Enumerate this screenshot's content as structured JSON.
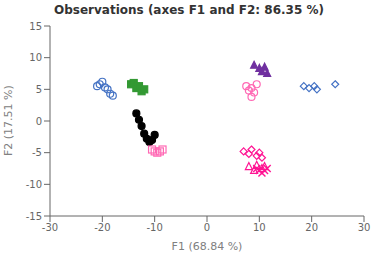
{
  "chart_data": {
    "type": "scatter",
    "title": "Observations (axes F1 and F2: 86.35 %)",
    "xlabel": "F1 (68.84 %)",
    "ylabel": "F2 (17.51 %)",
    "xlim": [
      -30,
      30
    ],
    "ylim": [
      -15,
      15
    ],
    "xticks": [
      -30,
      -20,
      -10,
      0,
      10,
      20,
      30
    ],
    "yticks": [
      -15,
      -10,
      -5,
      0,
      5,
      10,
      15
    ],
    "grid": false,
    "series": [
      {
        "color": "#4472c4",
        "marker": "circle-open",
        "x": [
          -21,
          -20.5,
          -20,
          -19.5,
          -19,
          -18.5,
          -18
        ],
        "values": [
          5.5,
          5.8,
          6.2,
          5.3,
          5.0,
          4.3,
          4.0
        ]
      },
      {
        "color": "#339933",
        "marker": "square",
        "x": [
          -14.5,
          -14,
          -13.5,
          -13,
          -12.5,
          -12
        ],
        "values": [
          5.8,
          6.0,
          5.2,
          5.5,
          4.7,
          5.0
        ]
      },
      {
        "color": "#000000",
        "marker": "circle",
        "x": [
          -13.5,
          -13,
          -12.5,
          -12,
          -11.5,
          -11,
          -10.5,
          -10
        ],
        "values": [
          1.2,
          0.2,
          -0.8,
          -2.0,
          -2.8,
          -3.3,
          -3.0,
          -2.2
        ]
      },
      {
        "color": "#ff69b4",
        "marker": "square-open",
        "x": [
          -10.5,
          -10,
          -9.5,
          -9,
          -8.5
        ],
        "values": [
          -4.5,
          -4.8,
          -5.0,
          -4.8,
          -4.5
        ]
      },
      {
        "color": "#ff69b4",
        "marker": "circle-open",
        "x": [
          7.5,
          8.0,
          8.5,
          9.0,
          9.5,
          8.5
        ],
        "values": [
          5.5,
          4.8,
          5.2,
          4.5,
          5.8,
          3.8
        ]
      },
      {
        "color": "#7030a0",
        "marker": "triangle",
        "x": [
          9.0,
          10.0,
          10.5,
          11.0,
          11.5
        ],
        "values": [
          8.8,
          8.3,
          7.8,
          8.5,
          7.5
        ]
      },
      {
        "color": "#4472c4",
        "marker": "diamond-open",
        "x": [
          18.5,
          19.5,
          20.5,
          21.0,
          24.5
        ],
        "values": [
          5.5,
          5.2,
          5.5,
          5.0,
          5.8
        ]
      },
      {
        "color": "#ff1493",
        "marker": "diamond-open",
        "x": [
          7.0,
          8.0,
          8.5,
          9.5,
          10.0,
          10.5
        ],
        "values": [
          -4.8,
          -5.2,
          -4.5,
          -5.5,
          -5.0,
          -5.8
        ]
      },
      {
        "color": "#ff1493",
        "marker": "triangle-open",
        "x": [
          8.0,
          9.0,
          9.5,
          10.5,
          11.0
        ],
        "values": [
          -7.2,
          -7.8,
          -7.0,
          -7.5,
          -7.2
        ]
      },
      {
        "color": "#ff1493",
        "marker": "x",
        "x": [
          9.5,
          10.0,
          10.5,
          11.0,
          11.5
        ],
        "values": [
          -7.5,
          -7.8,
          -8.2,
          -7.8,
          -7.5
        ]
      }
    ]
  }
}
